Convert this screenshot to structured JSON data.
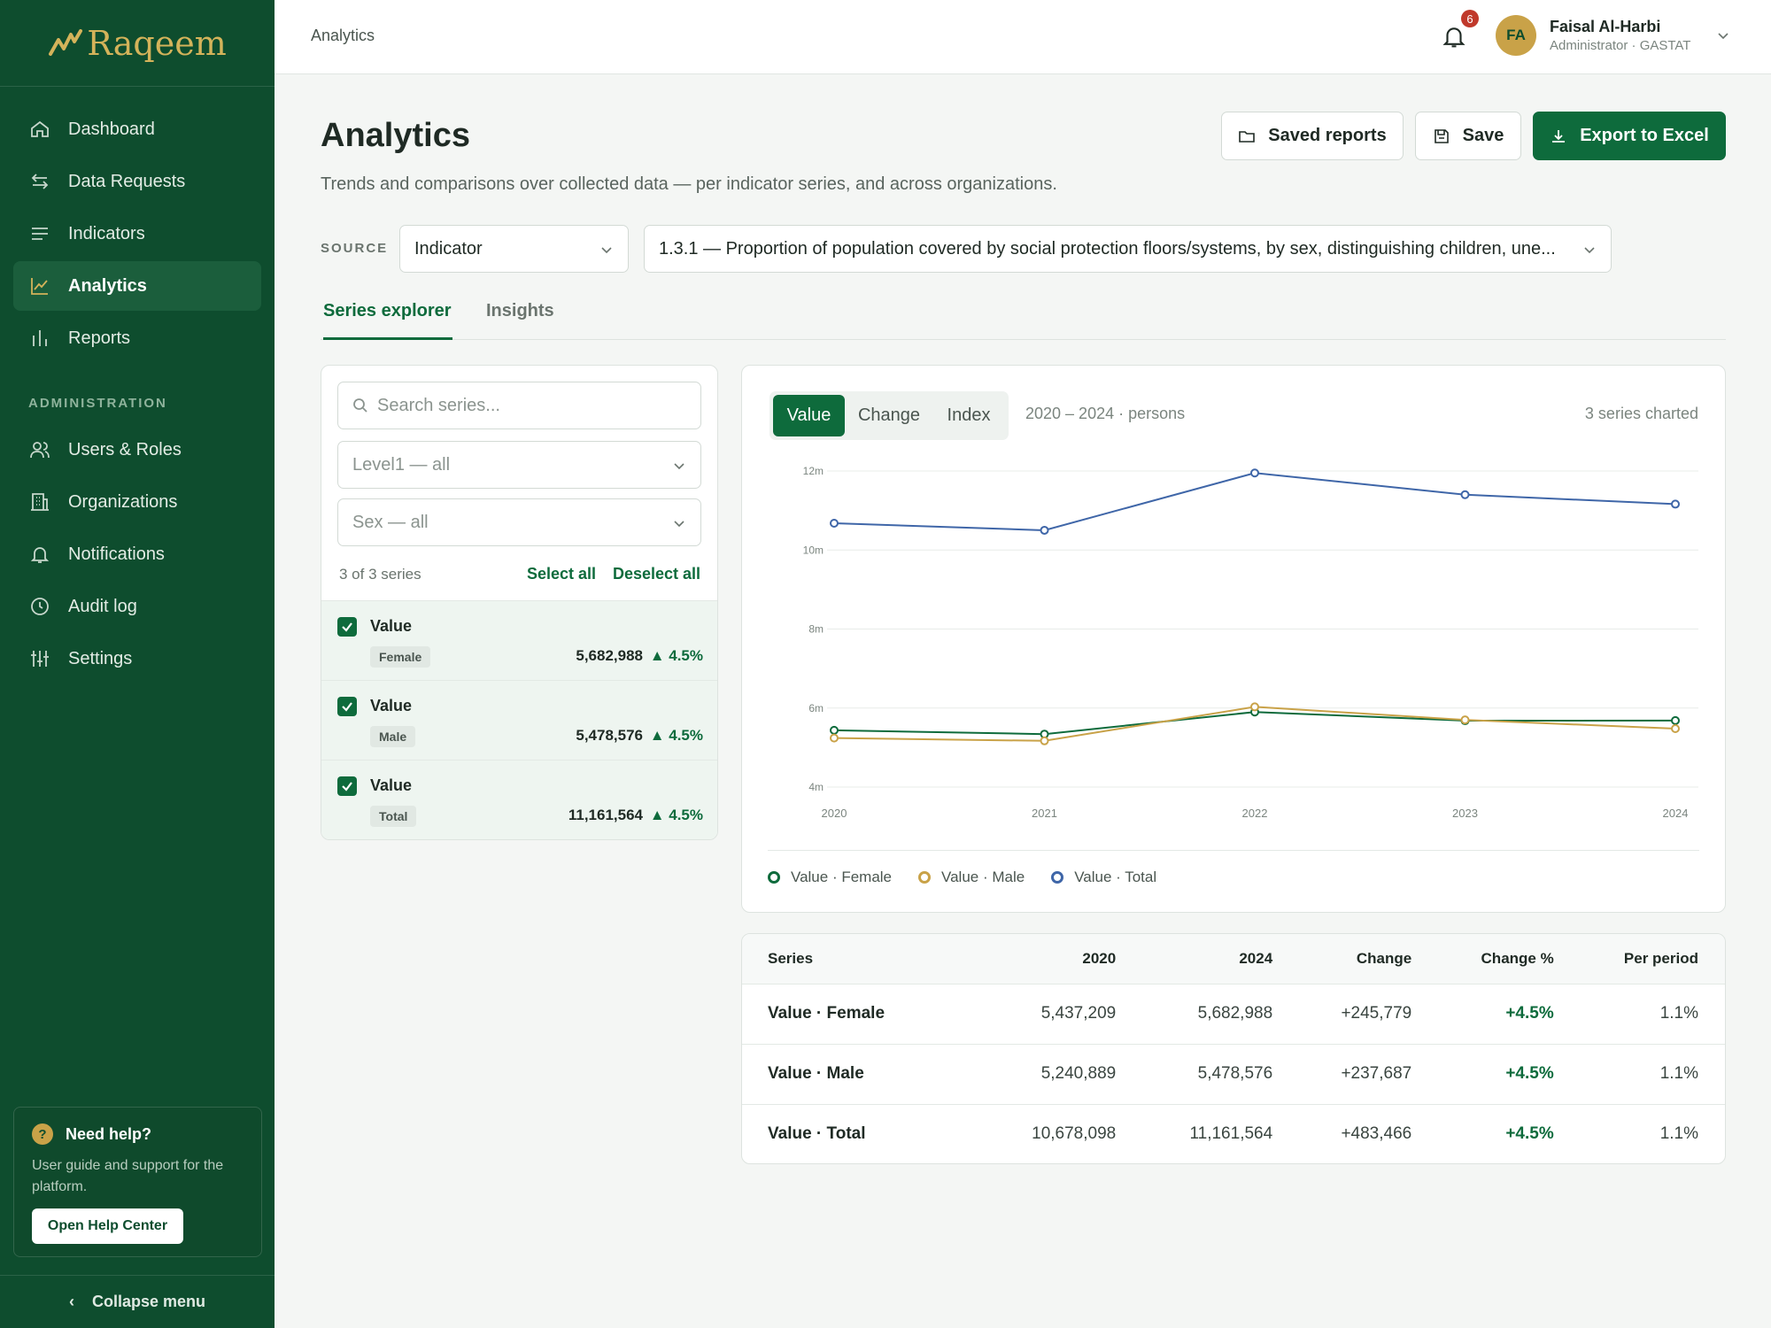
{
  "app": {
    "name": "Raqeem"
  },
  "sidebar": {
    "items": [
      {
        "label": "Dashboard",
        "icon": "home-icon"
      },
      {
        "label": "Data Requests",
        "icon": "swap-icon"
      },
      {
        "label": "Indicators",
        "icon": "list-icon"
      },
      {
        "label": "Analytics",
        "icon": "line-chart-icon",
        "active": true
      },
      {
        "label": "Reports",
        "icon": "bar-chart-icon"
      }
    ],
    "admin_section": "ADMINISTRATION",
    "admin_items": [
      {
        "label": "Users & Roles",
        "icon": "users-icon"
      },
      {
        "label": "Organizations",
        "icon": "building-icon"
      },
      {
        "label": "Notifications",
        "icon": "bell-icon"
      },
      {
        "label": "Audit log",
        "icon": "clock-icon"
      },
      {
        "label": "Settings",
        "icon": "sliders-icon"
      }
    ],
    "help": {
      "title": "Need help?",
      "text": "User guide and support for the platform.",
      "button": "Open Help Center"
    },
    "collapse": "Collapse menu"
  },
  "topbar": {
    "breadcrumb": "Analytics",
    "notification_count": "6",
    "user": {
      "initials": "FA",
      "name": "Faisal Al-Harbi",
      "role": "Administrator · GASTAT"
    }
  },
  "page": {
    "title": "Analytics",
    "subtitle": "Trends and comparisons over collected data — per indicator series, and across organizations.",
    "buttons": {
      "saved_reports": "Saved reports",
      "save": "Save",
      "export": "Export to Excel"
    },
    "source_label": "SOURCE",
    "source_type": "Indicator",
    "indicator": "1.3.1 — Proportion of population covered by social protection floors/systems, by sex, distinguishing children, une...",
    "tabs": [
      "Series explorer",
      "Insights"
    ]
  },
  "series_panel": {
    "search_placeholder": "Search series...",
    "filters": [
      "Level1 — all",
      "Sex — all"
    ],
    "count": "3 of 3 series",
    "select_all": "Select all",
    "deselect_all": "Deselect all",
    "series": [
      {
        "name": "Value",
        "tag": "Female",
        "value": "5,682,988",
        "change": "▲ 4.5%"
      },
      {
        "name": "Value",
        "tag": "Male",
        "value": "5,478,576",
        "change": "▲ 4.5%"
      },
      {
        "name": "Value",
        "tag": "Total",
        "value": "11,161,564",
        "change": "▲ 4.5%"
      }
    ]
  },
  "chart_controls": {
    "modes": [
      "Value",
      "Change",
      "Index"
    ],
    "range": "2020 – 2024 · persons",
    "charted": "3 series charted"
  },
  "colors": {
    "female": "#0e6b3c",
    "male": "#c9a248",
    "total": "#3f66a8",
    "brand": "#0e4d2e"
  },
  "chart_data": {
    "type": "line",
    "x": [
      2020,
      2021,
      2022,
      2023,
      2024
    ],
    "xlabel": "",
    "ylabel": "",
    "ylim": [
      4000000,
      12000000
    ],
    "yticks": [
      {
        "value": 4000000,
        "label": "4m"
      },
      {
        "value": 6000000,
        "label": "6m"
      },
      {
        "value": 8000000,
        "label": "8m"
      },
      {
        "value": 10000000,
        "label": "10m"
      },
      {
        "value": 12000000,
        "label": "12m"
      }
    ],
    "grid": true,
    "legend": "bottom-left",
    "series": [
      {
        "name": "Value · Female",
        "values": [
          5437209,
          5340000,
          5900000,
          5680000,
          5682988
        ]
      },
      {
        "name": "Value · Male",
        "values": [
          5240889,
          5170000,
          6030000,
          5700000,
          5478576
        ]
      },
      {
        "name": "Value · Total",
        "values": [
          10678098,
          10500000,
          11950000,
          11400000,
          11161564
        ]
      }
    ]
  },
  "table": {
    "headers": [
      "Series",
      "2020",
      "2024",
      "Change",
      "Change %",
      "Per period"
    ],
    "rows": [
      [
        "Value · Female",
        "5,437,209",
        "5,682,988",
        "+245,779",
        "+4.5%",
        "1.1%"
      ],
      [
        "Value · Male",
        "5,240,889",
        "5,478,576",
        "+237,687",
        "+4.5%",
        "1.1%"
      ],
      [
        "Value · Total",
        "10,678,098",
        "11,161,564",
        "+483,466",
        "+4.5%",
        "1.1%"
      ]
    ]
  }
}
